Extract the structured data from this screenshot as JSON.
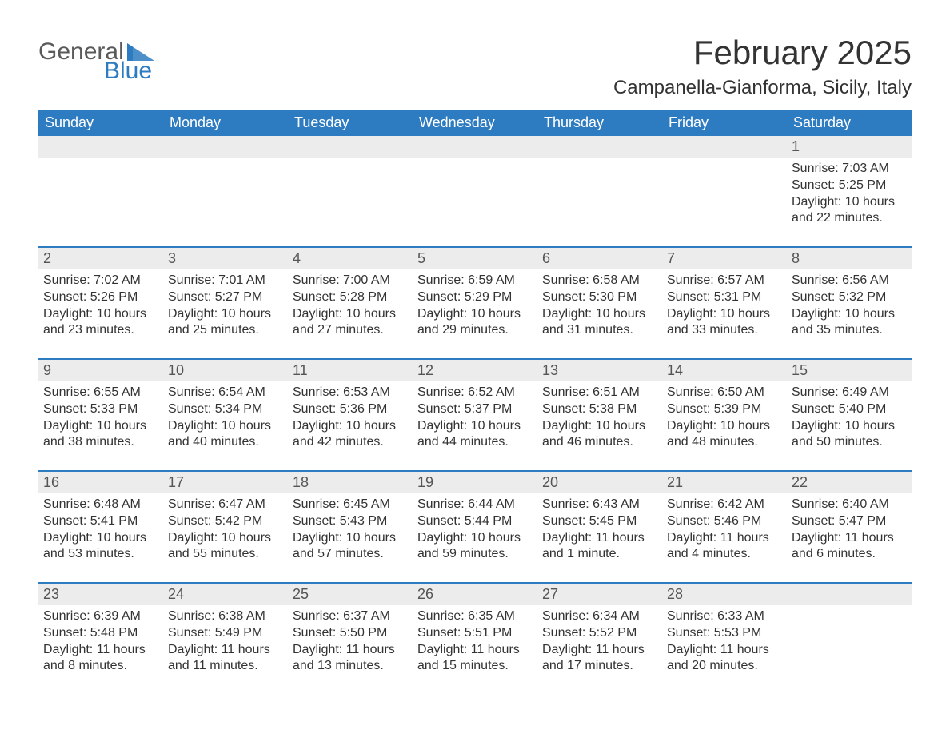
{
  "brand": {
    "word1": "General",
    "word2": "Blue"
  },
  "title": "February 2025",
  "location": "Campanella-Gianforma, Sicily, Italy",
  "colors": {
    "header_bg": "#2d7bc0",
    "header_text": "#ffffff",
    "daynum_bg": "#ececec",
    "row_divider": "#2d7bc0",
    "body_text": "#333333",
    "logo_gray": "#5a5a5a",
    "logo_blue": "#2d7bc0",
    "page_bg": "#ffffff"
  },
  "typography": {
    "title_fontsize": 42,
    "location_fontsize": 24,
    "dayheader_fontsize": 18,
    "daynum_fontsize": 18,
    "body_fontsize": 16,
    "logo_fontsize": 30
  },
  "day_headers": [
    "Sunday",
    "Monday",
    "Tuesday",
    "Wednesday",
    "Thursday",
    "Friday",
    "Saturday"
  ],
  "labels": {
    "sunrise": "Sunrise: ",
    "sunset": "Sunset: ",
    "daylight": "Daylight: "
  },
  "weeks": [
    [
      null,
      null,
      null,
      null,
      null,
      null,
      {
        "n": "1",
        "sr": "7:03 AM",
        "ss": "5:25 PM",
        "dl": "10 hours and 22 minutes."
      }
    ],
    [
      {
        "n": "2",
        "sr": "7:02 AM",
        "ss": "5:26 PM",
        "dl": "10 hours and 23 minutes."
      },
      {
        "n": "3",
        "sr": "7:01 AM",
        "ss": "5:27 PM",
        "dl": "10 hours and 25 minutes."
      },
      {
        "n": "4",
        "sr": "7:00 AM",
        "ss": "5:28 PM",
        "dl": "10 hours and 27 minutes."
      },
      {
        "n": "5",
        "sr": "6:59 AM",
        "ss": "5:29 PM",
        "dl": "10 hours and 29 minutes."
      },
      {
        "n": "6",
        "sr": "6:58 AM",
        "ss": "5:30 PM",
        "dl": "10 hours and 31 minutes."
      },
      {
        "n": "7",
        "sr": "6:57 AM",
        "ss": "5:31 PM",
        "dl": "10 hours and 33 minutes."
      },
      {
        "n": "8",
        "sr": "6:56 AM",
        "ss": "5:32 PM",
        "dl": "10 hours and 35 minutes."
      }
    ],
    [
      {
        "n": "9",
        "sr": "6:55 AM",
        "ss": "5:33 PM",
        "dl": "10 hours and 38 minutes."
      },
      {
        "n": "10",
        "sr": "6:54 AM",
        "ss": "5:34 PM",
        "dl": "10 hours and 40 minutes."
      },
      {
        "n": "11",
        "sr": "6:53 AM",
        "ss": "5:36 PM",
        "dl": "10 hours and 42 minutes."
      },
      {
        "n": "12",
        "sr": "6:52 AM",
        "ss": "5:37 PM",
        "dl": "10 hours and 44 minutes."
      },
      {
        "n": "13",
        "sr": "6:51 AM",
        "ss": "5:38 PM",
        "dl": "10 hours and 46 minutes."
      },
      {
        "n": "14",
        "sr": "6:50 AM",
        "ss": "5:39 PM",
        "dl": "10 hours and 48 minutes."
      },
      {
        "n": "15",
        "sr": "6:49 AM",
        "ss": "5:40 PM",
        "dl": "10 hours and 50 minutes."
      }
    ],
    [
      {
        "n": "16",
        "sr": "6:48 AM",
        "ss": "5:41 PM",
        "dl": "10 hours and 53 minutes."
      },
      {
        "n": "17",
        "sr": "6:47 AM",
        "ss": "5:42 PM",
        "dl": "10 hours and 55 minutes."
      },
      {
        "n": "18",
        "sr": "6:45 AM",
        "ss": "5:43 PM",
        "dl": "10 hours and 57 minutes."
      },
      {
        "n": "19",
        "sr": "6:44 AM",
        "ss": "5:44 PM",
        "dl": "10 hours and 59 minutes."
      },
      {
        "n": "20",
        "sr": "6:43 AM",
        "ss": "5:45 PM",
        "dl": "11 hours and 1 minute."
      },
      {
        "n": "21",
        "sr": "6:42 AM",
        "ss": "5:46 PM",
        "dl": "11 hours and 4 minutes."
      },
      {
        "n": "22",
        "sr": "6:40 AM",
        "ss": "5:47 PM",
        "dl": "11 hours and 6 minutes."
      }
    ],
    [
      {
        "n": "23",
        "sr": "6:39 AM",
        "ss": "5:48 PM",
        "dl": "11 hours and 8 minutes."
      },
      {
        "n": "24",
        "sr": "6:38 AM",
        "ss": "5:49 PM",
        "dl": "11 hours and 11 minutes."
      },
      {
        "n": "25",
        "sr": "6:37 AM",
        "ss": "5:50 PM",
        "dl": "11 hours and 13 minutes."
      },
      {
        "n": "26",
        "sr": "6:35 AM",
        "ss": "5:51 PM",
        "dl": "11 hours and 15 minutes."
      },
      {
        "n": "27",
        "sr": "6:34 AM",
        "ss": "5:52 PM",
        "dl": "11 hours and 17 minutes."
      },
      {
        "n": "28",
        "sr": "6:33 AM",
        "ss": "5:53 PM",
        "dl": "11 hours and 20 minutes."
      },
      null
    ]
  ]
}
